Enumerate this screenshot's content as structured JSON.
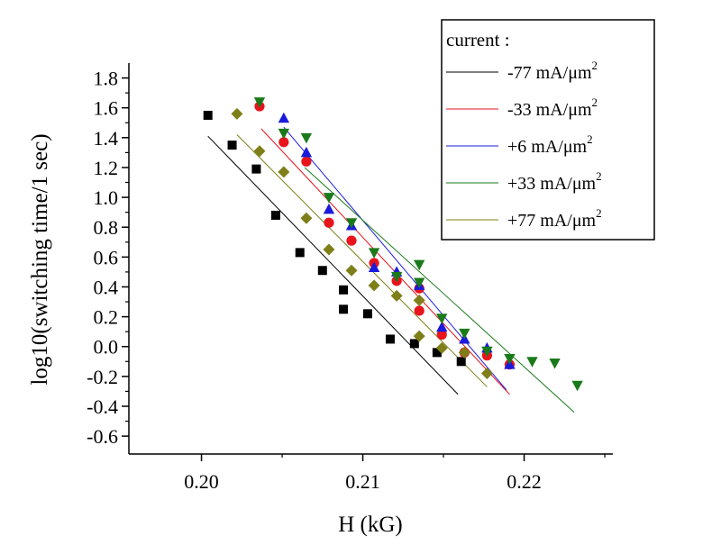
{
  "chart_data": {
    "type": "scatter",
    "xlabel": "H (kG)",
    "ylabel": "log10(switching time/1 sec)",
    "xlim": [
      0.1955,
      0.2255
    ],
    "ylim": [
      -0.72,
      1.9
    ],
    "x_ticks": [
      0.2,
      0.21,
      0.22
    ],
    "x_tick_labels": [
      "0.20",
      "0.21",
      "0.22"
    ],
    "y_ticks": [
      -0.6,
      -0.4,
      -0.2,
      0.0,
      0.2,
      0.4,
      0.6,
      0.8,
      1.0,
      1.2,
      1.4,
      1.6,
      1.8
    ],
    "y_tick_labels": [
      "-0.6",
      "-0.4",
      "-0.2",
      "0.0",
      "0.2",
      "0.4",
      "0.6",
      "0.8",
      "1.0",
      "1.2",
      "1.4",
      "1.6",
      "1.8"
    ],
    "grid": false,
    "legend": {
      "title": "current :",
      "placement": "top-right",
      "unit": "mA/μm",
      "unit_superscript": "2"
    },
    "series": [
      {
        "name": "-77",
        "color": "#000000",
        "marker": "square",
        "points": [
          [
            0.2004,
            1.55
          ],
          [
            0.2019,
            1.35
          ],
          [
            0.2034,
            1.19
          ],
          [
            0.2046,
            0.88
          ],
          [
            0.2061,
            0.63
          ],
          [
            0.2075,
            0.51
          ],
          [
            0.2088,
            0.38
          ],
          [
            0.2088,
            0.25
          ],
          [
            0.2103,
            0.22
          ],
          [
            0.2117,
            0.05
          ],
          [
            0.2132,
            0.02
          ],
          [
            0.2146,
            -0.04
          ],
          [
            0.2161,
            -0.1
          ]
        ],
        "fit": [
          [
            0.2004,
            1.41
          ],
          [
            0.2159,
            -0.32
          ]
        ]
      },
      {
        "name": "-33",
        "color": "#e8141c",
        "marker": "circle",
        "points": [
          [
            0.2036,
            1.61
          ],
          [
            0.2051,
            1.37
          ],
          [
            0.2065,
            1.24
          ],
          [
            0.2079,
            0.83
          ],
          [
            0.2093,
            0.71
          ],
          [
            0.2107,
            0.56
          ],
          [
            0.2121,
            0.44
          ],
          [
            0.2135,
            0.39
          ],
          [
            0.2135,
            0.24
          ],
          [
            0.2149,
            0.08
          ],
          [
            0.2163,
            -0.04
          ],
          [
            0.2177,
            -0.06
          ],
          [
            0.2191,
            -0.12
          ]
        ],
        "fit": [
          [
            0.2037,
            1.46
          ],
          [
            0.2191,
            -0.32
          ]
        ]
      },
      {
        "name": "+6",
        "color": "#1a1adc",
        "marker": "triangle-up",
        "points": [
          [
            0.2051,
            1.53
          ],
          [
            0.2065,
            1.3
          ],
          [
            0.2079,
            0.92
          ],
          [
            0.2093,
            0.81
          ],
          [
            0.2107,
            0.53
          ],
          [
            0.2121,
            0.5
          ],
          [
            0.2135,
            0.41
          ],
          [
            0.2149,
            0.13
          ],
          [
            0.2163,
            0.05
          ],
          [
            0.2177,
            -0.01
          ],
          [
            0.2191,
            -0.12
          ]
        ],
        "fit": [
          [
            0.2051,
            1.47
          ],
          [
            0.2189,
            -0.29
          ]
        ]
      },
      {
        "name": "+33",
        "color": "#1a7a1a",
        "marker": "triangle-down",
        "points": [
          [
            0.2036,
            1.64
          ],
          [
            0.2051,
            1.43
          ],
          [
            0.2065,
            1.4
          ],
          [
            0.2079,
            1.0
          ],
          [
            0.2093,
            0.83
          ],
          [
            0.2107,
            0.63
          ],
          [
            0.2121,
            0.47
          ],
          [
            0.2135,
            0.55
          ],
          [
            0.2135,
            0.43
          ],
          [
            0.2149,
            0.19
          ],
          [
            0.2163,
            0.09
          ],
          [
            0.2177,
            -0.03
          ],
          [
            0.2191,
            -0.08
          ],
          [
            0.2205,
            -0.1
          ],
          [
            0.2219,
            -0.11
          ],
          [
            0.2233,
            -0.26
          ]
        ],
        "fit": [
          [
            0.2064,
            1.2
          ],
          [
            0.2231,
            -0.44
          ]
        ]
      },
      {
        "name": "+77",
        "color": "#7f7f1a",
        "marker": "diamond",
        "points": [
          [
            0.2022,
            1.56
          ],
          [
            0.2036,
            1.31
          ],
          [
            0.2051,
            1.17
          ],
          [
            0.2065,
            0.86
          ],
          [
            0.2079,
            0.65
          ],
          [
            0.2093,
            0.51
          ],
          [
            0.2107,
            0.41
          ],
          [
            0.2121,
            0.34
          ],
          [
            0.2135,
            0.31
          ],
          [
            0.2135,
            0.07
          ],
          [
            0.2149,
            -0.01
          ],
          [
            0.2163,
            -0.04
          ],
          [
            0.2177,
            -0.18
          ]
        ],
        "fit": [
          [
            0.2022,
            1.42
          ],
          [
            0.2177,
            -0.27
          ]
        ]
      }
    ]
  }
}
